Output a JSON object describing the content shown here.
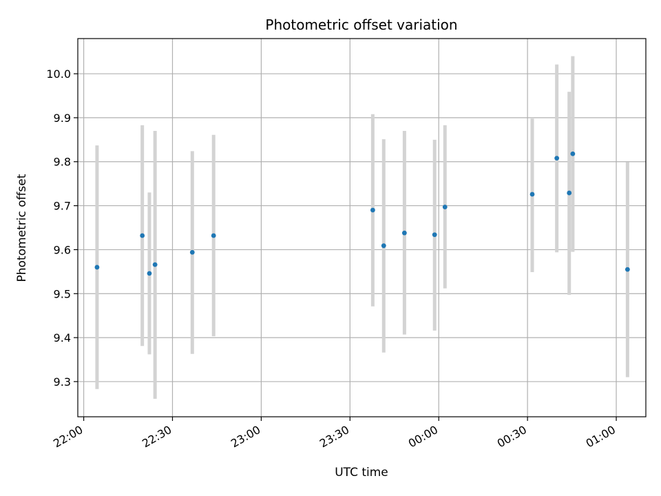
{
  "chart_data": {
    "type": "scatter",
    "title": "Photometric offset variation",
    "xlabel": "UTC time",
    "ylabel": "Photometric offset",
    "xlim": [
      "21:58",
      "01:10"
    ],
    "ylim": [
      9.22,
      10.08
    ],
    "x_ticks": [
      "22:00",
      "22:30",
      "23:00",
      "23:30",
      "00:00",
      "00:30",
      "01:00"
    ],
    "y_ticks": [
      "9.3",
      "9.4",
      "9.5",
      "9.6",
      "9.7",
      "9.8",
      "9.9",
      "10.0"
    ],
    "grid": true,
    "colors": {
      "point": "#1f77b4",
      "errorbar": "#d3d3d3",
      "grid": "#b0b0b0"
    },
    "points": [
      {
        "x": "22:04.5",
        "y": 9.56,
        "err_low": 9.283,
        "err_high": 9.837
      },
      {
        "x": "22:19.8",
        "y": 9.632,
        "err_low": 9.381,
        "err_high": 9.883
      },
      {
        "x": "22:22.2",
        "y": 9.546,
        "err_low": 9.362,
        "err_high": 9.73
      },
      {
        "x": "22:24.1",
        "y": 9.566,
        "err_low": 9.261,
        "err_high": 9.87
      },
      {
        "x": "22:36.7",
        "y": 9.594,
        "err_low": 9.363,
        "err_high": 9.824
      },
      {
        "x": "22:43.9",
        "y": 9.632,
        "err_low": 9.403,
        "err_high": 9.861
      },
      {
        "x": "23:37.7",
        "y": 9.69,
        "err_low": 9.471,
        "err_high": 9.908
      },
      {
        "x": "23:41.4",
        "y": 9.609,
        "err_low": 9.366,
        "err_high": 9.851
      },
      {
        "x": "23:48.4",
        "y": 9.638,
        "err_low": 9.407,
        "err_high": 9.87
      },
      {
        "x": "23:58.6",
        "y": 9.634,
        "err_low": 9.416,
        "err_high": 9.85
      },
      {
        "x": "00:02.1",
        "y": 9.697,
        "err_low": 9.512,
        "err_high": 9.883
      },
      {
        "x": "00:31.6",
        "y": 9.726,
        "err_low": 9.549,
        "err_high": 9.898
      },
      {
        "x": "00:39.9",
        "y": 9.808,
        "err_low": 9.594,
        "err_high": 10.021
      },
      {
        "x": "00:44.1",
        "y": 9.729,
        "err_low": 9.497,
        "err_high": 9.959
      },
      {
        "x": "00:45.3",
        "y": 9.818,
        "err_low": 9.595,
        "err_high": 10.04
      },
      {
        "x": "01:03.8",
        "y": 9.555,
        "err_low": 9.31,
        "err_high": 9.799
      }
    ]
  }
}
